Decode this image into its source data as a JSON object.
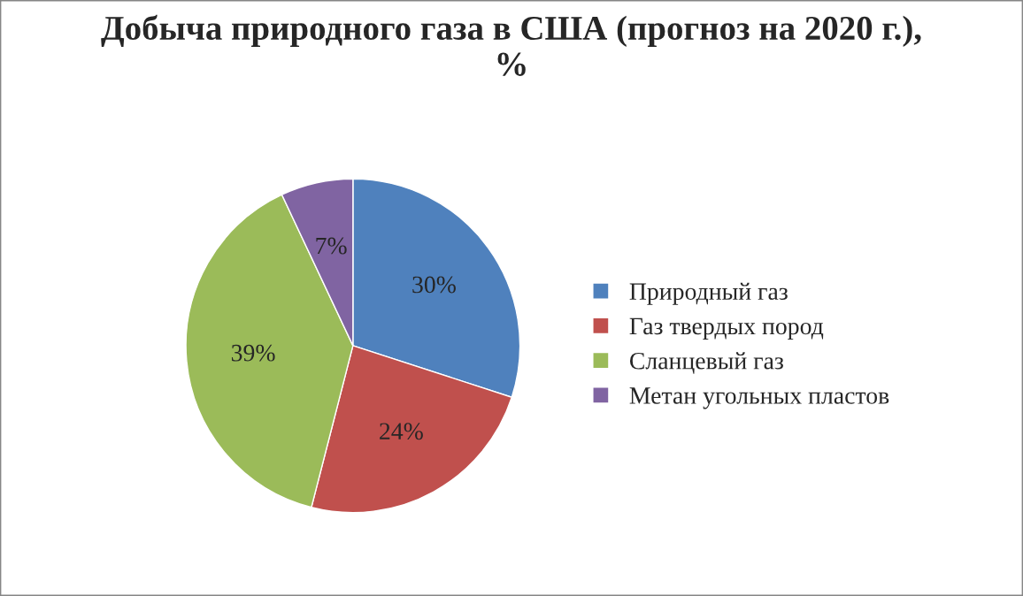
{
  "chart_data": {
    "type": "pie",
    "title": "Добыча природного газа в США (прогноз на 2020 г.),\n%",
    "categories": [
      "Природный газ",
      "Газ твердых пород",
      "Сланцевый газ",
      "Метан угольных пластов"
    ],
    "values": [
      30,
      24,
      39,
      7
    ],
    "colors": [
      "#4f81bd",
      "#c0504d",
      "#9bbb59",
      "#8064a2"
    ],
    "value_labels": [
      "30%",
      "24%",
      "39%",
      "7%"
    ],
    "legend": "right"
  }
}
